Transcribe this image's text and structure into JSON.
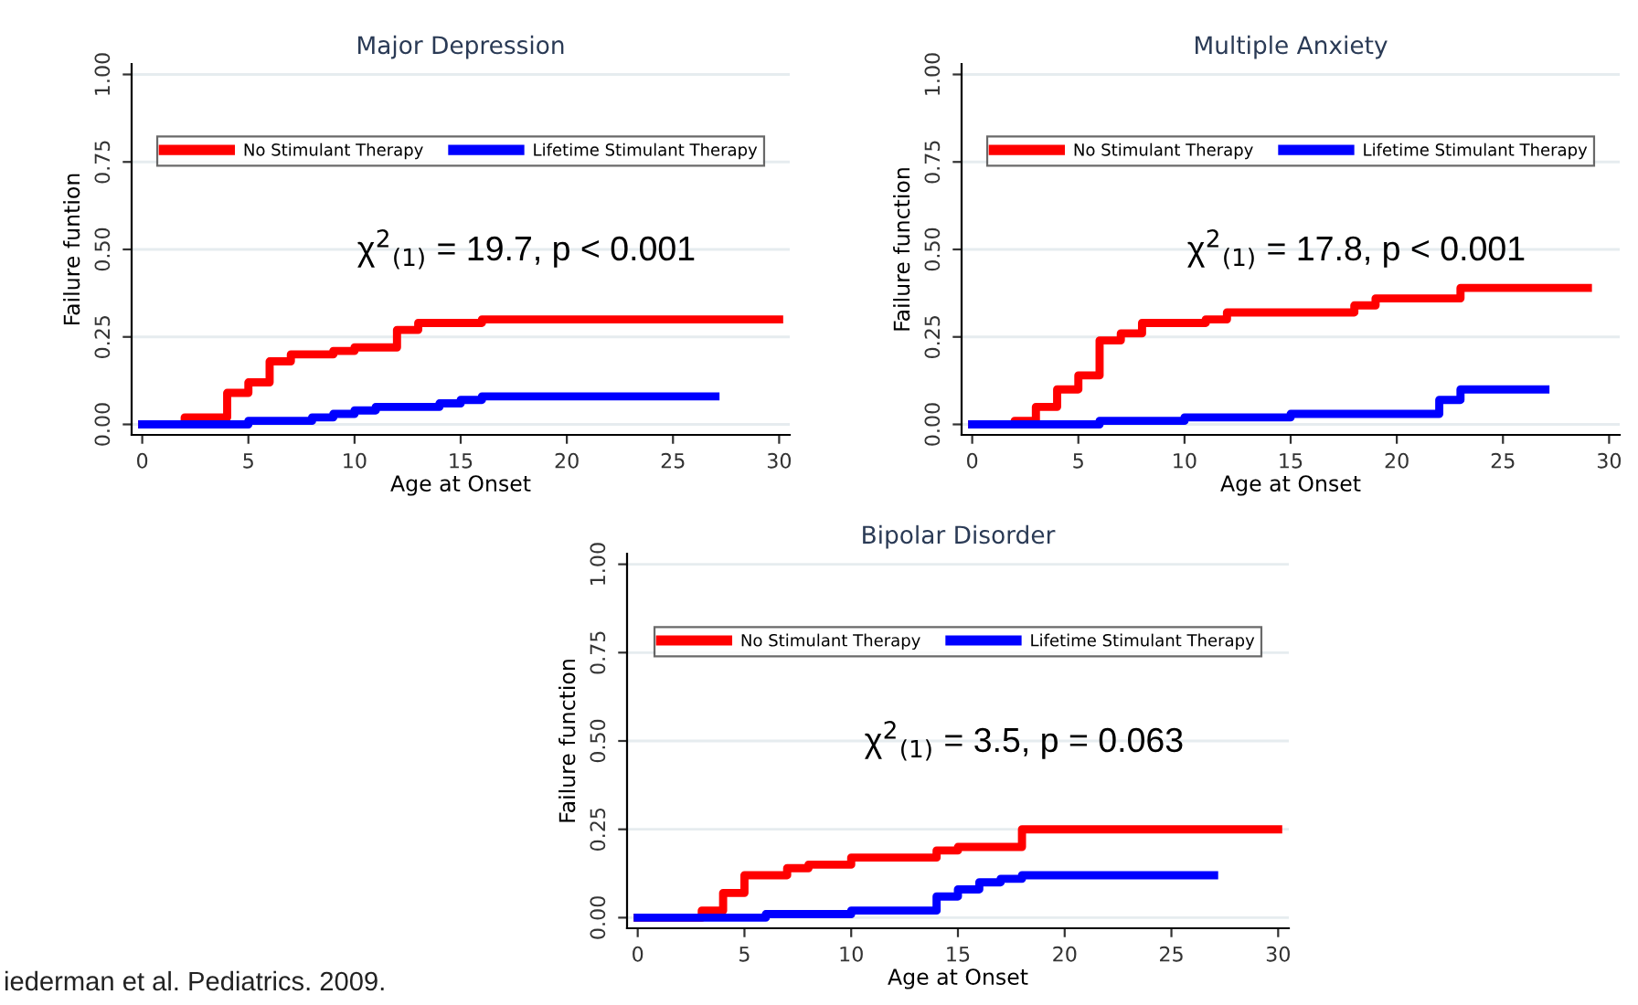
{
  "chart_data": [
    {
      "type": "step",
      "title": "Major Depression",
      "xlabel": "Age at Onset",
      "ylabel": "Failure funtion",
      "xlim": [
        -0.5,
        30.5
      ],
      "xticks": [
        0,
        5,
        10,
        15,
        20,
        25,
        30
      ],
      "ylim": [
        -0.03,
        1.03
      ],
      "yticks": [
        {
          "value": 0,
          "label": "0.00"
        },
        {
          "value": 0.25,
          "label": "0.25"
        },
        {
          "value": 0.5,
          "label": "0.50"
        },
        {
          "value": 0.75,
          "label": "0.75"
        },
        {
          "value": 1,
          "label": "1.00"
        }
      ],
      "grid": "y",
      "legend": "top",
      "line_style": "solid",
      "marker": "none",
      "annotations": [
        "χ$^{2}$$_{(1)}$ = 19.7, p < 0.001"
      ],
      "series": [
        {
          "name": "No Stimulant Therapy",
          "color": "#ff0000",
          "x": [
            0,
            2,
            4,
            5,
            6,
            7,
            9,
            10,
            12,
            13,
            16,
            30
          ],
          "values": [
            0,
            0.02,
            0.09,
            0.12,
            0.18,
            0.2,
            0.21,
            0.22,
            0.27,
            0.29,
            0.3,
            0.3
          ]
        },
        {
          "name": "Lifetime Stimulant Therapy",
          "color": "#0000ff",
          "x": [
            0,
            5,
            8,
            9,
            10,
            11,
            14,
            15,
            16,
            27
          ],
          "values": [
            0,
            0.01,
            0.02,
            0.03,
            0.04,
            0.05,
            0.06,
            0.07,
            0.08,
            0.08
          ]
        }
      ]
    },
    {
      "type": "step",
      "title": "Multiple Anxiety",
      "xlabel": "Age at Onset",
      "ylabel": "Failure function",
      "xlim": [
        -0.5,
        30.5
      ],
      "xticks": [
        0,
        5,
        10,
        15,
        20,
        25,
        30
      ],
      "ylim": [
        -0.03,
        1.03
      ],
      "yticks": [
        {
          "value": 0,
          "label": "0.00"
        },
        {
          "value": 0.25,
          "label": "0.25"
        },
        {
          "value": 0.5,
          "label": "0.50"
        },
        {
          "value": 0.75,
          "label": "0.75"
        },
        {
          "value": 1,
          "label": "1.00"
        }
      ],
      "grid": "y",
      "legend": "top",
      "line_style": "solid",
      "marker": "none",
      "annotations": [
        "χ$^{2}$$_{(1)}$ = 17.8, p < 0.001"
      ],
      "series": [
        {
          "name": "No Stimulant Therapy",
          "color": "#ff0000",
          "x": [
            0,
            2,
            3,
            4,
            5,
            6,
            7,
            8,
            11,
            12,
            18,
            19,
            23,
            29
          ],
          "values": [
            0,
            0.01,
            0.05,
            0.1,
            0.14,
            0.24,
            0.26,
            0.29,
            0.3,
            0.32,
            0.34,
            0.36,
            0.39,
            0.39
          ]
        },
        {
          "name": "Lifetime Stimulant Therapy",
          "color": "#0000ff",
          "x": [
            0,
            6,
            10,
            15,
            22,
            23,
            27
          ],
          "values": [
            0,
            0.01,
            0.02,
            0.03,
            0.07,
            0.1,
            0.1
          ]
        }
      ]
    },
    {
      "type": "step",
      "title": "Bipolar Disorder",
      "xlabel": "Age at Onset",
      "ylabel": "Failure function",
      "xlim": [
        -0.5,
        30.5
      ],
      "xticks": [
        0,
        5,
        10,
        15,
        20,
        25,
        30
      ],
      "ylim": [
        -0.03,
        1.03
      ],
      "yticks": [
        {
          "value": 0,
          "label": "0.00"
        },
        {
          "value": 0.25,
          "label": "0.25"
        },
        {
          "value": 0.5,
          "label": "0.50"
        },
        {
          "value": 0.75,
          "label": "0.75"
        },
        {
          "value": 1,
          "label": "1.00"
        }
      ],
      "grid": "y",
      "legend": "top",
      "line_style": "solid",
      "marker": "none",
      "annotations": [
        "χ$^{2}$$_{(1)}$ = 3.5, p = 0.063",
        "iederman et al. Pediatrics. 2009."
      ],
      "series": [
        {
          "name": "No Stimulant Therapy",
          "color": "#ff0000",
          "x": [
            0,
            3,
            4,
            5,
            7,
            8,
            10,
            14,
            15,
            18,
            30
          ],
          "values": [
            0,
            0.02,
            0.07,
            0.12,
            0.14,
            0.15,
            0.17,
            0.19,
            0.2,
            0.25,
            0.25
          ]
        },
        {
          "name": "Lifetime Stimulant Therapy",
          "color": "#0000ff",
          "x": [
            0,
            6,
            10,
            14,
            15,
            16,
            17,
            18,
            27
          ],
          "values": [
            0,
            0.01,
            0.02,
            0.06,
            0.08,
            0.1,
            0.11,
            0.12,
            0.12
          ]
        }
      ]
    }
  ]
}
